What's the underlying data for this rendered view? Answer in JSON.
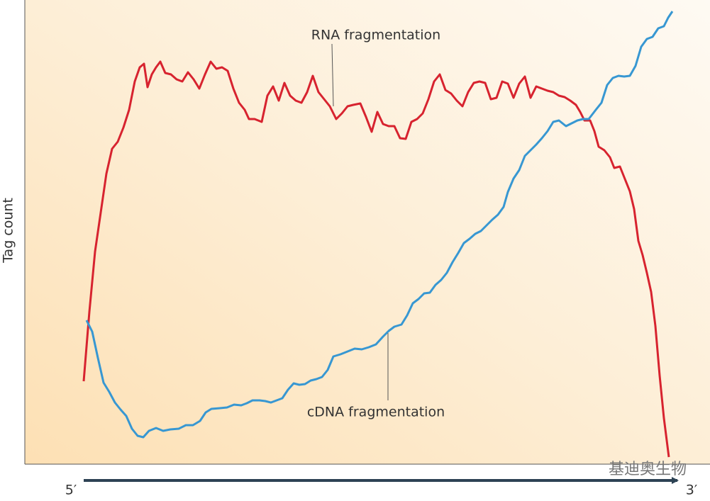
{
  "chart_data": {
    "type": "line",
    "ylabel": "Tag count",
    "x_start_label": "5′",
    "x_end_label": "3′",
    "annotations": [
      "RNA fragmentation",
      "cDNA fragmentation"
    ],
    "watermark": "基迪奥生物",
    "xlim": [
      0,
      830
    ],
    "ylim": [
      0,
      655
    ],
    "series": [
      {
        "name": "RNA fragmentation",
        "color": "#d7232f",
        "x": [
          0,
          8,
          16,
          24,
          32,
          40,
          48,
          56,
          64,
          72,
          79,
          85,
          90,
          96,
          102,
          108,
          115,
          123,
          131,
          139,
          147,
          155,
          163,
          171,
          179,
          187,
          195,
          203,
          211,
          219,
          227,
          233,
          241,
          251,
          259,
          267,
          275,
          283,
          291,
          299,
          307,
          315,
          323,
          331,
          339,
          347,
          356,
          364,
          372,
          380,
          390,
          398,
          406,
          414,
          422,
          430,
          438,
          446,
          454,
          462,
          470,
          478,
          486,
          494,
          502,
          510,
          518,
          526,
          534,
          542,
          550,
          558,
          566,
          574,
          582,
          590,
          598,
          606,
          614,
          622,
          630,
          638,
          646,
          654,
          662,
          670,
          678,
          686,
          694,
          700,
          706,
          714,
          720,
          726,
          734,
          742,
          748,
          756,
          762,
          770,
          776,
          782,
          788,
          794,
          800,
          806,
          812,
          818,
          825
        ],
        "values": [
          117,
          215,
          300,
          355,
          410,
          445,
          455,
          475,
          500,
          540,
          560,
          565,
          532,
          550,
          560,
          568,
          552,
          550,
          543,
          540,
          553,
          543,
          530,
          550,
          568,
          558,
          560,
          555,
          530,
          510,
          500,
          487,
          487,
          483,
          520,
          533,
          513,
          538,
          520,
          513,
          510,
          525,
          548,
          525,
          515,
          505,
          487,
          495,
          505,
          507,
          509,
          490,
          469,
          497,
          480,
          477,
          477,
          460,
          459,
          483,
          487,
          495,
          515,
          540,
          550,
          528,
          523,
          513,
          505,
          525,
          538,
          540,
          538,
          515,
          517,
          540,
          537,
          517,
          537,
          547,
          517,
          533,
          530,
          527,
          525,
          520,
          518,
          513,
          507,
          497,
          485,
          485,
          470,
          448,
          443,
          433,
          418,
          420,
          405,
          385,
          360,
          315,
          295,
          270,
          243,
          195,
          125,
          65,
          10
        ]
      },
      {
        "name": "cDNA fragmentation",
        "color": "#3797d2",
        "x": [
          4,
          12,
          20,
          28,
          36,
          44,
          52,
          60,
          68,
          76,
          84,
          92,
          102,
          112,
          122,
          134,
          144,
          154,
          164,
          172,
          180,
          192,
          202,
          212,
          222,
          230,
          238,
          248,
          256,
          264,
          272,
          280,
          288,
          296,
          304,
          312,
          320,
          328,
          336,
          344,
          352,
          362,
          372,
          382,
          392,
          402,
          412,
          422,
          430,
          438,
          448,
          456,
          464,
          472,
          480,
          488,
          496,
          504,
          512,
          520,
          528,
          536,
          544,
          552,
          560,
          568,
          576,
          584,
          592,
          598,
          606,
          614,
          622,
          630,
          638,
          646,
          654,
          662,
          670,
          680,
          688,
          696,
          704,
          712,
          722,
          730,
          738,
          746,
          754,
          762,
          770,
          778,
          786,
          794,
          802,
          810,
          818,
          824,
          830
        ],
        "values": [
          203,
          187,
          150,
          115,
          102,
          87,
          77,
          68,
          50,
          40,
          38,
          47,
          51,
          47,
          49,
          50,
          55,
          55,
          61,
          73,
          78,
          79,
          80,
          84,
          83,
          86,
          90,
          90,
          89,
          87,
          90,
          93,
          105,
          114,
          112,
          113,
          118,
          120,
          123,
          133,
          152,
          155,
          159,
          163,
          162,
          165,
          169,
          180,
          188,
          194,
          197,
          210,
          227,
          233,
          241,
          242,
          253,
          260,
          270,
          285,
          298,
          312,
          318,
          325,
          329,
          337,
          345,
          352,
          363,
          384,
          403,
          415,
          435,
          443,
          451,
          460,
          470,
          483,
          485,
          477,
          481,
          485,
          487,
          487,
          500,
          510,
          535,
          545,
          548,
          547,
          548,
          562,
          589,
          600,
          603,
          615,
          618,
          630,
          639
        ]
      }
    ]
  }
}
